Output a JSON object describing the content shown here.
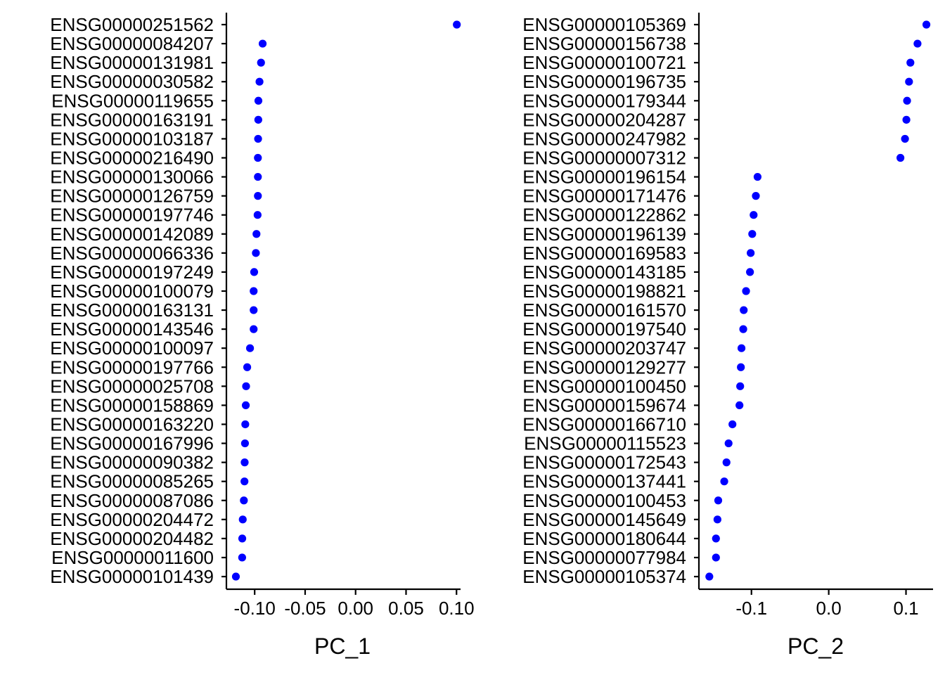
{
  "chart_data": [
    {
      "type": "scatter",
      "xlabel": "PC_1",
      "xticks": [
        -0.1,
        -0.05,
        0.0,
        0.05,
        0.1
      ],
      "xtick_labels": [
        "-0.10",
        "-0.05",
        "0.00",
        "0.05",
        "0.10"
      ],
      "xlim": [
        -0.128,
        0.104
      ],
      "point_color": "#0000FF",
      "grid": false,
      "genes": [
        "ENSG00000251562",
        "ENSG00000084207",
        "ENSG00000131981",
        "ENSG00000030582",
        "ENSG00000119655",
        "ENSG00000163191",
        "ENSG00000103187",
        "ENSG00000216490",
        "ENSG00000130066",
        "ENSG00000126759",
        "ENSG00000197746",
        "ENSG00000142089",
        "ENSG00000066336",
        "ENSG00000197249",
        "ENSG00000100079",
        "ENSG00000163131",
        "ENSG00000143546",
        "ENSG00000100097",
        "ENSG00000197766",
        "ENSG00000025708",
        "ENSG00000158869",
        "ENSG00000163220",
        "ENSG00000167996",
        "ENSG00000090382",
        "ENSG00000085265",
        "ENSG00000087086",
        "ENSG00000204472",
        "ENSG00000204482",
        "ENSG00000011600",
        "ENSG00000101439"
      ],
      "values": [
        0.1003,
        -0.0921,
        -0.0937,
        -0.0952,
        -0.0963,
        -0.0964,
        -0.0966,
        -0.0968,
        -0.0968,
        -0.0968,
        -0.0971,
        -0.0982,
        -0.0988,
        -0.1005,
        -0.101,
        -0.101,
        -0.101,
        -0.1046,
        -0.1074,
        -0.1085,
        -0.1088,
        -0.1093,
        -0.1096,
        -0.1099,
        -0.1101,
        -0.1107,
        -0.1118,
        -0.1123,
        -0.1124,
        -0.1186
      ]
    },
    {
      "type": "scatter",
      "xlabel": "PC_2",
      "xticks": [
        -0.1,
        0.0,
        0.1
      ],
      "xtick_labels": [
        "-0.1",
        "0.0",
        "0.1"
      ],
      "xlim": [
        -0.168,
        0.135
      ],
      "point_color": "#0000FF",
      "grid": false,
      "genes": [
        "ENSG00000105369",
        "ENSG00000156738",
        "ENSG00000100721",
        "ENSG00000196735",
        "ENSG00000179344",
        "ENSG00000204287",
        "ENSG00000247982",
        "ENSG00000007312",
        "ENSG00000196154",
        "ENSG00000171476",
        "ENSG00000122862",
        "ENSG00000196139",
        "ENSG00000169583",
        "ENSG00000143185",
        "ENSG00000198821",
        "ENSG00000161570",
        "ENSG00000197540",
        "ENSG00000203747",
        "ENSG00000129277",
        "ENSG00000100450",
        "ENSG00000159674",
        "ENSG00000166710",
        "ENSG00000115523",
        "ENSG00000172543",
        "ENSG00000137441",
        "ENSG00000100453",
        "ENSG00000145649",
        "ENSG00000180644",
        "ENSG00000077984",
        "ENSG00000105374"
      ],
      "values": [
        0.1264,
        0.1149,
        0.1057,
        0.1039,
        0.1014,
        0.1005,
        0.0987,
        0.0928,
        -0.0921,
        -0.0943,
        -0.0972,
        -0.099,
        -0.101,
        -0.1019,
        -0.107,
        -0.11,
        -0.1106,
        -0.1129,
        -0.1137,
        -0.1146,
        -0.1155,
        -0.1246,
        -0.1296,
        -0.1323,
        -0.1352,
        -0.143,
        -0.144,
        -0.1459,
        -0.1459,
        -0.1545
      ]
    }
  ]
}
